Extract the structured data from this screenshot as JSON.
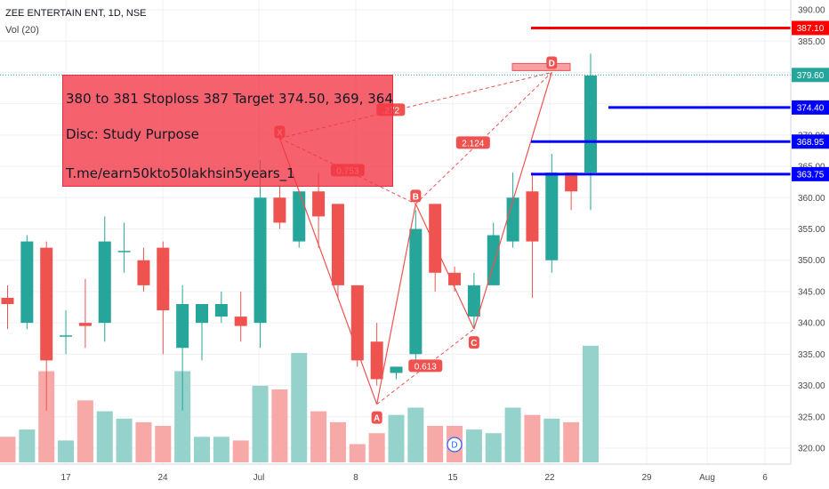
{
  "header": {
    "symbol_line": "ZEE ENTERTAIN ENT, 1D, NSE",
    "volume_label": "Vol (20)"
  },
  "callout": {
    "line1": "380 to 381 Stoploss 387 Target 374.50, 369, 364",
    "line2": "Disc: Study Purpose",
    "line3": "T.me/earn50kto50lakhsin5years_1"
  },
  "colors": {
    "up": "#26a69a",
    "down": "#ef5350",
    "up_volume": "#95d2cc",
    "down_volume": "#f7a9a7",
    "pattern": "#ef5350",
    "stoploss": "#ff0000",
    "target": "#0000ff",
    "price_line": "#26a69a"
  },
  "chart_data": {
    "type": "candlestick",
    "title": "ZEE ENTERTAIN ENT, 1D, NSE",
    "y_axis_ticks": [
      "390.00",
      "385.00",
      "380.00",
      "375.00",
      "370.00",
      "365.00",
      "360.00",
      "355.00",
      "350.00",
      "345.00",
      "340.00",
      "335.00",
      "330.00",
      "325.00",
      "320.00"
    ],
    "ylim": [
      319,
      391
    ],
    "x_axis_ticks": [
      "17",
      "24",
      "Jul",
      "8",
      "15",
      "22",
      "29",
      "Aug",
      "6"
    ],
    "candles": [
      {
        "o": 344,
        "h": 346,
        "l": 339,
        "c": 343,
        "v": 24
      },
      {
        "o": 340,
        "h": 354,
        "l": 339,
        "c": 353,
        "v": 25
      },
      {
        "o": 352,
        "h": 353,
        "l": 326,
        "c": 334,
        "v": 33
      },
      {
        "o": 338,
        "h": 342,
        "l": 335,
        "c": 338,
        "v": 23.5
      },
      {
        "o": 340,
        "h": 347,
        "l": 336,
        "c": 339.5,
        "v": 29
      },
      {
        "o": 340,
        "h": 357,
        "l": 337,
        "c": 353,
        "v": 27.5
      },
      {
        "o": 351.5,
        "h": 356,
        "l": 348,
        "c": 351.5,
        "v": 26.5
      },
      {
        "o": 350,
        "h": 352,
        "l": 345,
        "c": 346,
        "v": 26
      },
      {
        "o": 352,
        "h": 353,
        "l": 335,
        "c": 342,
        "v": 25.5
      },
      {
        "o": 336,
        "h": 346,
        "l": 326,
        "c": 343,
        "v": 33
      },
      {
        "o": 340,
        "h": 343,
        "l": 334,
        "c": 343,
        "v": 24
      },
      {
        "o": 341,
        "h": 345,
        "l": 340,
        "c": 343,
        "v": 24
      },
      {
        "o": 341,
        "h": 345,
        "l": 337,
        "c": 339.5,
        "v": 23.5
      },
      {
        "o": 340,
        "h": 366,
        "l": 336,
        "c": 360,
        "v": 31
      },
      {
        "o": 360,
        "h": 362,
        "l": 355,
        "c": 356,
        "v": 30.5
      },
      {
        "o": 353,
        "h": 361,
        "l": 352,
        "c": 361,
        "v": 35.5
      },
      {
        "o": 361,
        "h": 364,
        "l": 352,
        "c": 357,
        "v": 27.5
      },
      {
        "o": 359,
        "h": 359,
        "l": 344,
        "c": 346,
        "v": 26
      },
      {
        "o": 346,
        "h": 346,
        "l": 333,
        "c": 334,
        "v": 23
      },
      {
        "o": 337,
        "h": 340,
        "l": 330,
        "c": 331,
        "v": 24.5
      },
      {
        "o": 332,
        "h": 333,
        "l": 331,
        "c": 333,
        "v": 27
      },
      {
        "o": 335,
        "h": 358,
        "l": 334,
        "c": 355,
        "v": 28
      },
      {
        "o": 359,
        "h": 359,
        "l": 345,
        "c": 348,
        "v": 25.5
      },
      {
        "o": 348,
        "h": 349,
        "l": 345,
        "c": 346,
        "v": 25.5
      },
      {
        "o": 341,
        "h": 348,
        "l": 339,
        "c": 346,
        "v": 25
      },
      {
        "o": 346,
        "h": 356,
        "l": 346,
        "c": 354,
        "v": 24.5
      },
      {
        "o": 353,
        "h": 364,
        "l": 352,
        "c": 360,
        "v": 28
      },
      {
        "o": 361,
        "h": 364,
        "l": 344,
        "c": 353,
        "v": 27
      },
      {
        "o": 350,
        "h": 367,
        "l": 348,
        "c": 364,
        "v": 26.5
      },
      {
        "o": 364,
        "h": 364,
        "l": 358,
        "c": 361,
        "v": 26
      },
      {
        "o": 364,
        "h": 383,
        "l": 358,
        "c": 379.5,
        "v": 36.5
      }
    ],
    "harmonic_pattern": {
      "points": [
        {
          "label": "X",
          "date_index": 14,
          "price": 369.5
        },
        {
          "label": "A",
          "date_index": 19,
          "price": 327
        },
        {
          "label": "B",
          "date_index": 21,
          "price": 359
        },
        {
          "label": "C",
          "date_index": 24,
          "price": 339
        },
        {
          "label": "D",
          "date_index": 28,
          "price": 380
        }
      ],
      "ratios": [
        "0.753",
        "0.613",
        "2.124",
        ".272"
      ],
      "d_zone": [
        380,
        381
      ]
    },
    "levels": [
      {
        "value": 387.1,
        "label": "387.10",
        "role": "stoploss"
      },
      {
        "value": 374.4,
        "label": "374.40",
        "role": "target"
      },
      {
        "value": 368.95,
        "label": "368.95",
        "role": "target"
      },
      {
        "value": 363.75,
        "label": "363.75",
        "role": "target"
      }
    ],
    "last_price": {
      "value": 379.6,
      "label": "379.60"
    },
    "event_marker": "D"
  }
}
